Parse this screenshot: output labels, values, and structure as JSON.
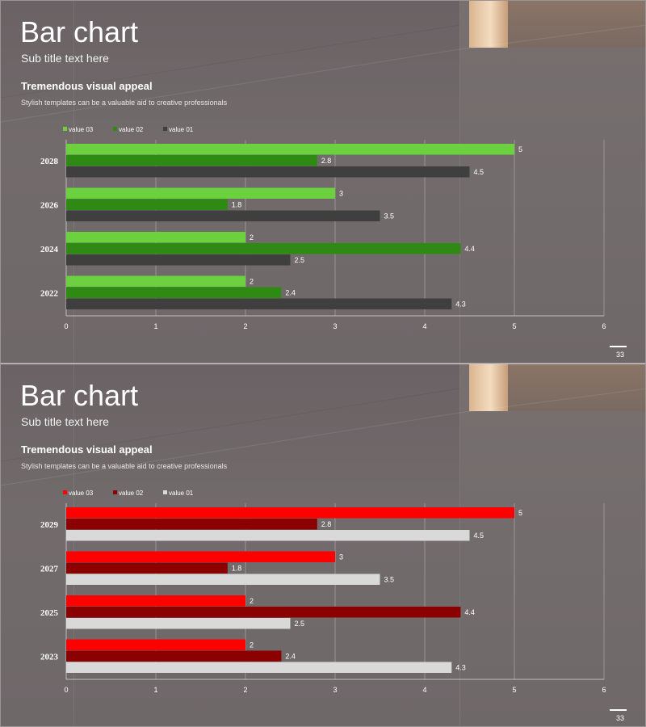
{
  "chart_data": [
    {
      "type": "bar",
      "orientation": "horizontal",
      "title": "Bar chart",
      "subtitle": "Sub title text here",
      "heading": "Tremendous visual appeal",
      "description": "Stylish templates can be a valuable aid to creative professionals",
      "categories": [
        "2028",
        "2026",
        "2024",
        "2022"
      ],
      "series": [
        {
          "name": "value 03",
          "color": "#6cd13f",
          "values": [
            5,
            3,
            2,
            2
          ]
        },
        {
          "name": "value 02",
          "color": "#2f8a14",
          "values": [
            2.8,
            1.8,
            4.4,
            2.4
          ]
        },
        {
          "name": "value 01",
          "color": "#3f3f3f",
          "values": [
            4.5,
            3.5,
            2.5,
            4.3
          ]
        }
      ],
      "xlim": [
        0,
        6
      ],
      "xticks": [
        "0",
        "1",
        "2",
        "3",
        "4",
        "5",
        "6"
      ],
      "grid": true,
      "legend": "top-left",
      "page": "33"
    },
    {
      "type": "bar",
      "orientation": "horizontal",
      "title": "Bar chart",
      "subtitle": "Sub title text here",
      "heading": "Tremendous visual appeal",
      "description": "Stylish templates can be a valuable aid to creative professionals",
      "categories": [
        "2029",
        "2027",
        "2025",
        "2023"
      ],
      "series": [
        {
          "name": "value 03",
          "color": "#ff0000",
          "values": [
            5,
            3,
            2,
            2
          ]
        },
        {
          "name": "value 02",
          "color": "#8b0000",
          "values": [
            2.8,
            1.8,
            4.4,
            2.4
          ]
        },
        {
          "name": "value 01",
          "color": "#d9d9d9",
          "values": [
            4.5,
            3.5,
            2.5,
            4.3
          ]
        }
      ],
      "xlim": [
        0,
        6
      ],
      "xticks": [
        "0",
        "1",
        "2",
        "3",
        "4",
        "5",
        "6"
      ],
      "grid": true,
      "legend": "top-left",
      "page": "33"
    }
  ]
}
